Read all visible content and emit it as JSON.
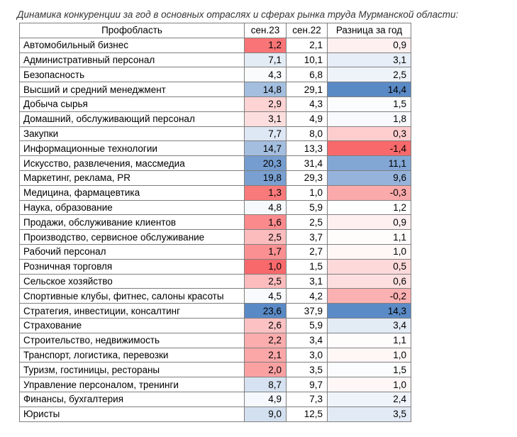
{
  "title": "Динамика конкуренции за год в основных отраслях и сферах рынка труда Мурманской области:",
  "colors": {
    "low": "#f8696b",
    "mid": "#ffffff",
    "high": "#5a8ac6"
  },
  "chart_data": {
    "type": "table",
    "columns": [
      "Профобласть",
      "сен.23",
      "сен.22",
      "Разница за год"
    ],
    "rows": [
      {
        "name": "Автомобильный бизнес",
        "sep23": "1,2",
        "sep22": "2,1",
        "diff": "0,9"
      },
      {
        "name": "Административный персонал",
        "sep23": "7,1",
        "sep22": "10,1",
        "diff": "3,1"
      },
      {
        "name": "Безопасность",
        "sep23": "4,3",
        "sep22": "6,8",
        "diff": "2,5"
      },
      {
        "name": "Высший и средний менеджмент",
        "sep23": "14,8",
        "sep22": "29,1",
        "diff": "14,4"
      },
      {
        "name": "Добыча сырья",
        "sep23": "2,9",
        "sep22": "4,3",
        "diff": "1,5"
      },
      {
        "name": "Домашний, обслуживающий персонал",
        "sep23": "3,1",
        "sep22": "4,9",
        "diff": "1,8"
      },
      {
        "name": "Закупки",
        "sep23": "7,7",
        "sep22": "8,0",
        "diff": "0,3"
      },
      {
        "name": "Информационные технологии",
        "sep23": "14,7",
        "sep22": "13,3",
        "diff": "-1,4"
      },
      {
        "name": "Искусство, развлечения, массмедиа",
        "sep23": "20,3",
        "sep22": "31,4",
        "diff": "11,1"
      },
      {
        "name": "Маркетинг, реклама, PR",
        "sep23": "19,8",
        "sep22": "29,3",
        "diff": "9,6"
      },
      {
        "name": "Медицина, фармацевтика",
        "sep23": "1,3",
        "sep22": "1,0",
        "diff": "-0,3"
      },
      {
        "name": "Наука, образование",
        "sep23": "4,8",
        "sep22": "5,9",
        "diff": "1,2"
      },
      {
        "name": "Продажи, обслуживание клиентов",
        "sep23": "1,6",
        "sep22": "2,5",
        "diff": "0,9"
      },
      {
        "name": "Производство, сервисное обслуживание",
        "sep23": "2,5",
        "sep22": "3,7",
        "diff": "1,1"
      },
      {
        "name": "Рабочий персонал",
        "sep23": "1,7",
        "sep22": "2,7",
        "diff": "1,0"
      },
      {
        "name": "Розничная торговля",
        "sep23": "1,0",
        "sep22": "1,5",
        "diff": "0,5"
      },
      {
        "name": "Сельское хозяйство",
        "sep23": "2,5",
        "sep22": "3,1",
        "diff": "0,6"
      },
      {
        "name": "Спортивные клубы, фитнес, салоны красоты",
        "sep23": "4,5",
        "sep22": "4,2",
        "diff": "-0,2"
      },
      {
        "name": "Стратегия, инвестиции, консалтинг",
        "sep23": "23,6",
        "sep22": "37,9",
        "diff": "14,3"
      },
      {
        "name": "Страхование",
        "sep23": "2,6",
        "sep22": "5,9",
        "diff": "3,4"
      },
      {
        "name": "Строительство, недвижимость",
        "sep23": "2,2",
        "sep22": "3,4",
        "diff": "1,1"
      },
      {
        "name": "Транспорт, логистика, перевозки",
        "sep23": "2,1",
        "sep22": "3,0",
        "diff": "1,0"
      },
      {
        "name": "Туризм, гостиницы, рестораны",
        "sep23": "2,0",
        "sep22": "3,5",
        "diff": "1,5"
      },
      {
        "name": "Управление персоналом, тренинги",
        "sep23": "8,7",
        "sep22": "9,7",
        "diff": "1,0"
      },
      {
        "name": "Финансы, бухгалтерия",
        "sep23": "4,9",
        "sep22": "7,3",
        "diff": "2,4"
      },
      {
        "name": "Юристы",
        "sep23": "9,0",
        "sep22": "12,5",
        "diff": "3,5"
      }
    ]
  }
}
